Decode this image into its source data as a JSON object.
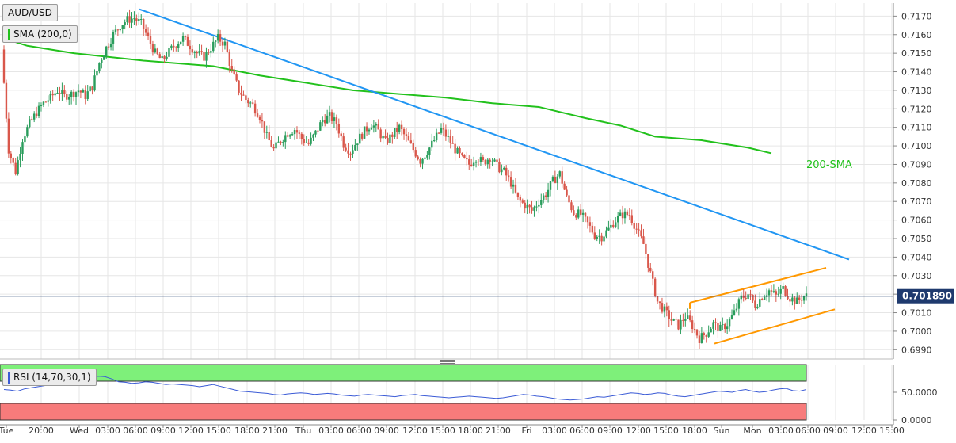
{
  "symbol": "AUD/USD",
  "sma_label": "SMA (200,0)",
  "rsi_label": "RSI (14,70,30,1)",
  "sma_annotation": "200-SMA",
  "last_price_label": "0.701890",
  "colors": {
    "bull": "#2a9d5c",
    "bear": "#d9574b",
    "sma": "#22c11c",
    "trendline": "#2196f3",
    "channel": "#ff9800",
    "rsi_line": "#3b5bd6",
    "rsi_overbought_zone": "#7ef07a",
    "rsi_oversold_zone": "#f77b7b",
    "grid": "#e6e6e6"
  },
  "chart_data": [
    {
      "type": "candlestick",
      "title": "AUD/USD",
      "ylim": [
        0.6985,
        0.7177
      ],
      "y_ticks": [
        "0.6990",
        "0.7000",
        "0.7010",
        "0.7020",
        "0.7030",
        "0.7040",
        "0.7050",
        "0.7060",
        "0.7070",
        "0.7080",
        "0.7090",
        "0.7100",
        "0.7110",
        "0.7120",
        "0.7130",
        "0.7140",
        "0.7150",
        "0.7160",
        "0.7170"
      ],
      "x_ticks": [
        "Tue",
        "20:00",
        "Wed",
        "03:00",
        "06:00",
        "09:00",
        "12:00",
        "15:00",
        "18:00",
        "21:00",
        "Thu",
        "03:00",
        "06:00",
        "09:00",
        "12:00",
        "15:00",
        "18:00",
        "21:00",
        "Fri",
        "03:00",
        "06:00",
        "09:00",
        "12:00",
        "15:00",
        "18:00",
        "Sun",
        "Mon",
        "03:00",
        "06:00",
        "09:00",
        "12:00",
        "15:00"
      ],
      "last_price": 0.70189,
      "grid": true,
      "series_ohlc_path": [
        [
          0,
          0.7152
        ],
        [
          3,
          0.7098
        ],
        [
          6,
          0.7086
        ],
        [
          9,
          0.7104
        ],
        [
          12,
          0.7112
        ],
        [
          15,
          0.7118
        ],
        [
          18,
          0.7123
        ],
        [
          21,
          0.7126
        ],
        [
          24,
          0.713
        ],
        [
          27,
          0.7127
        ],
        [
          30,
          0.7128
        ],
        [
          33,
          0.713
        ],
        [
          36,
          0.7127
        ],
        [
          39,
          0.7132
        ],
        [
          42,
          0.7145
        ],
        [
          45,
          0.7153
        ],
        [
          48,
          0.716
        ],
        [
          51,
          0.7165
        ],
        [
          54,
          0.7168
        ],
        [
          57,
          0.7169
        ],
        [
          60,
          0.7166
        ],
        [
          63,
          0.7158
        ],
        [
          66,
          0.715
        ],
        [
          69,
          0.7146
        ],
        [
          72,
          0.7151
        ],
        [
          75,
          0.7155
        ],
        [
          78,
          0.7158
        ],
        [
          81,
          0.7154
        ],
        [
          84,
          0.715
        ],
        [
          87,
          0.7148
        ],
        [
          90,
          0.7153
        ],
        [
          93,
          0.7158
        ],
        [
          96,
          0.7155
        ],
        [
          99,
          0.714
        ],
        [
          102,
          0.713
        ],
        [
          105,
          0.7125
        ],
        [
          108,
          0.7122
        ],
        [
          111,
          0.7116
        ],
        [
          114,
          0.7105
        ],
        [
          117,
          0.7098
        ],
        [
          120,
          0.7103
        ],
        [
          123,
          0.7107
        ],
        [
          126,
          0.7109
        ],
        [
          129,
          0.7104
        ],
        [
          132,
          0.7101
        ],
        [
          135,
          0.7107
        ],
        [
          138,
          0.7114
        ],
        [
          141,
          0.7116
        ],
        [
          144,
          0.7112
        ],
        [
          147,
          0.7101
        ],
        [
          150,
          0.7097
        ],
        [
          153,
          0.7103
        ],
        [
          156,
          0.7108
        ],
        [
          159,
          0.7112
        ],
        [
          162,
          0.7108
        ],
        [
          165,
          0.7102
        ],
        [
          168,
          0.7106
        ],
        [
          171,
          0.711
        ],
        [
          174,
          0.7104
        ],
        [
          177,
          0.7098
        ],
        [
          180,
          0.7092
        ],
        [
          183,
          0.7097
        ],
        [
          186,
          0.7103
        ],
        [
          189,
          0.7109
        ],
        [
          192,
          0.7104
        ],
        [
          195,
          0.7098
        ],
        [
          198,
          0.7093
        ],
        [
          201,
          0.709
        ],
        [
          204,
          0.7094
        ],
        [
          207,
          0.7091
        ],
        [
          210,
          0.7094
        ],
        [
          213,
          0.7089
        ],
        [
          216,
          0.7086
        ],
        [
          219,
          0.708
        ],
        [
          222,
          0.7071
        ],
        [
          225,
          0.7068
        ],
        [
          228,
          0.7065
        ],
        [
          231,
          0.707
        ],
        [
          234,
          0.7074
        ],
        [
          237,
          0.7081
        ],
        [
          240,
          0.7085
        ],
        [
          243,
          0.7072
        ],
        [
          246,
          0.7064
        ],
        [
          249,
          0.7063
        ],
        [
          252,
          0.7058
        ],
        [
          255,
          0.7052
        ],
        [
          258,
          0.7051
        ],
        [
          261,
          0.7055
        ],
        [
          264,
          0.706
        ],
        [
          267,
          0.7063
        ],
        [
          270,
          0.7063
        ],
        [
          273,
          0.7055
        ],
        [
          276,
          0.7047
        ],
        [
          279,
          0.7031
        ],
        [
          282,
          0.7016
        ],
        [
          285,
          0.7011
        ],
        [
          288,
          0.7006
        ],
        [
          291,
          0.7003
        ],
        [
          294,
          0.7008
        ],
        [
          297,
          0.7003
        ],
        [
          300,
          0.6996
        ],
        [
          303,
          0.6999
        ],
        [
          306,
          0.7004
        ],
        [
          309,
          0.7001
        ],
        [
          312,
          0.7004
        ],
        [
          315,
          0.701
        ],
        [
          318,
          0.7018
        ],
        [
          321,
          0.702
        ],
        [
          324,
          0.7014
        ],
        [
          327,
          0.7019
        ],
        [
          330,
          0.7022
        ],
        [
          333,
          0.7019
        ],
        [
          336,
          0.7023
        ],
        [
          339,
          0.7018
        ],
        [
          342,
          0.7016
        ],
        [
          345,
          0.7019
        ]
      ]
    },
    {
      "type": "line",
      "title": "RSI (14,70,30,1)",
      "ylim": [
        0,
        100
      ],
      "y_ticks": [
        "0.0000",
        "50.0000"
      ],
      "overbought": 70,
      "oversold": 30,
      "values": [
        55,
        54,
        52,
        56,
        58,
        60,
        62,
        64,
        66,
        68,
        70,
        73,
        76,
        78,
        79,
        78,
        74,
        69,
        68,
        66,
        67,
        69,
        68,
        66,
        64,
        65,
        64,
        63,
        62,
        60,
        62,
        64,
        61,
        58,
        55,
        52,
        51,
        50,
        49,
        48,
        46,
        45,
        47,
        48,
        49,
        48,
        46,
        47,
        48,
        47,
        45,
        44,
        43,
        45,
        46,
        45,
        44,
        43,
        42,
        44,
        45,
        46,
        44,
        43,
        42,
        41,
        40,
        41,
        42,
        43,
        42,
        41,
        40,
        39,
        40,
        42,
        44,
        46,
        45,
        43,
        42,
        40,
        38,
        37,
        36,
        37,
        38,
        40,
        42,
        41,
        43,
        45,
        47,
        49,
        48,
        46,
        47,
        49,
        48,
        45,
        43,
        42,
        44,
        46,
        48,
        50,
        52,
        51,
        50,
        53,
        55,
        52,
        50,
        51,
        54,
        56,
        57,
        53,
        52,
        55
      ]
    }
  ]
}
